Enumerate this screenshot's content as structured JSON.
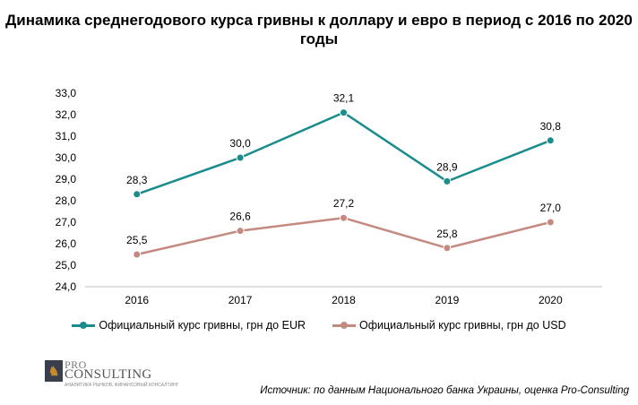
{
  "title": "Динамика среднегодового курса гривны к доллару и евро в период с 2016 по 2020 годы",
  "chart_data": {
    "type": "line",
    "x": [
      "2016",
      "2017",
      "2018",
      "2019",
      "2020"
    ],
    "ylim": [
      24.0,
      33.0
    ],
    "yticks": [
      "24,0",
      "25,0",
      "26,0",
      "27,0",
      "28,0",
      "29,0",
      "30,0",
      "31,0",
      "32,0",
      "33,0"
    ],
    "grid": false,
    "legend_position": "bottom",
    "series": [
      {
        "name": "Официальный  курс гривны, грн до EUR",
        "values": [
          28.3,
          30.0,
          32.1,
          28.9,
          30.8
        ],
        "labels": [
          "28,3",
          "30,0",
          "32,1",
          "28,9",
          "30,8"
        ],
        "color": "#1a8c8c"
      },
      {
        "name": "Официальный  курс гривны, грн до USD",
        "values": [
          25.5,
          26.6,
          27.2,
          25.8,
          27.0
        ],
        "labels": [
          "25,5",
          "26,6",
          "27,2",
          "25,8",
          "27,0"
        ],
        "color": "#c48a80"
      }
    ]
  },
  "logo": {
    "top": "PRO",
    "name": "CONSULTING",
    "tagline": "АНАЛИТИКА РЫНКОВ, ФИНАНСОВЫЙ КОНСАЛТИНГ"
  },
  "source": "Источник: по данным Национального банка Украины, оценка Pro-Consulting"
}
